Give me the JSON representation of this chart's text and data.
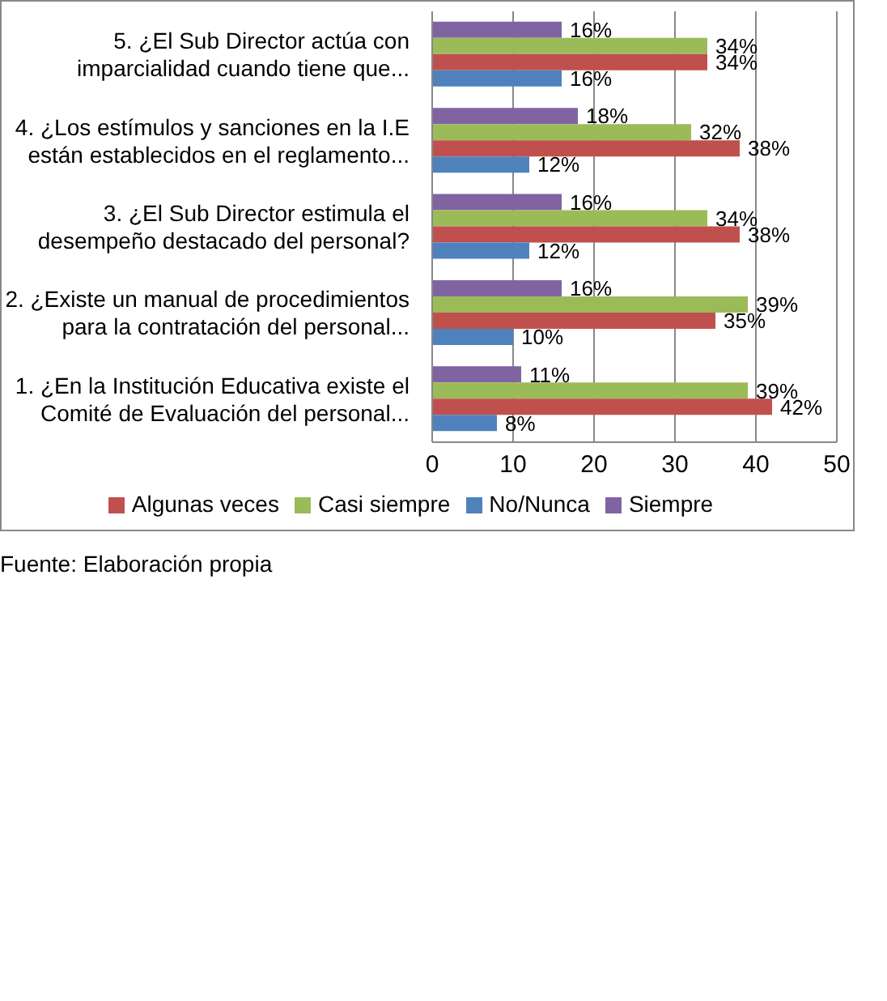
{
  "chart_data": {
    "type": "bar",
    "orientation": "horizontal",
    "categories": [
      "5. ¿El Sub Director actúa con\nimparcialidad cuando tiene que...",
      "4. ¿Los estímulos y sanciones en la I.E\nestán establecidos en el reglamento...",
      "3. ¿El Sub Director estimula el\ndesempeño destacado del personal?",
      "2. ¿Existe un manual de procedimientos\npara la contratación del personal...",
      "1. ¿En la Institución Educativa existe el\nComité de Evaluación del personal..."
    ],
    "series": [
      {
        "name": "Siempre",
        "color": "#8064a2",
        "values": [
          16,
          18,
          16,
          16,
          11
        ],
        "value_labels": [
          "16%",
          "18%",
          "16%",
          "16%",
          "11%"
        ]
      },
      {
        "name": "Casi siempre",
        "color": "#9bbb59",
        "values": [
          34,
          32,
          34,
          39,
          39
        ],
        "value_labels": [
          "34%",
          "32%",
          "34%",
          "39%",
          "39%"
        ]
      },
      {
        "name": "Algunas veces",
        "color": "#c0504d",
        "values": [
          34,
          38,
          38,
          35,
          42
        ],
        "value_labels": [
          "34%",
          "38%",
          "38%",
          "35%",
          "42%"
        ]
      },
      {
        "name": "No/Nunca",
        "color": "#4f81bd",
        "values": [
          16,
          12,
          12,
          10,
          8
        ],
        "value_labels": [
          "16%",
          "12%",
          "12%",
          "10%",
          "8%"
        ]
      }
    ],
    "xlim": [
      0,
      50
    ],
    "xticks": [
      0,
      10,
      20,
      30,
      40,
      50
    ],
    "grid": "x",
    "legend": "bottom",
    "annotations": [
      "Fuente: Elaboración propia"
    ]
  }
}
